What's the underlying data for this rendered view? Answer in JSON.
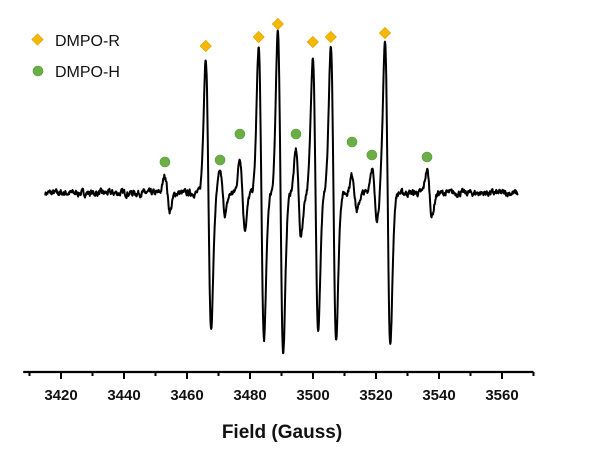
{
  "chart_data": {
    "type": "line",
    "title": "",
    "xlabel": "Field (Gauss)",
    "ylabel": "",
    "xlim": [
      3408,
      3570
    ],
    "xticks": [
      3420,
      3440,
      3460,
      3480,
      3500,
      3520,
      3540,
      3560
    ],
    "xtick_labels": [
      "3420",
      "3440",
      "3460",
      "3480",
      "3500",
      "3520",
      "3540",
      "3560"
    ],
    "spectrum_range": [
      3415,
      3565
    ],
    "y_axis_shown": false,
    "grid": false,
    "legend": {
      "placement": "top-left",
      "entries": [
        {
          "label": "DMPO-R",
          "marker": "diamond",
          "color": "#F5B800"
        },
        {
          "label": "DMPO-H",
          "marker": "circle",
          "color": "#6AAE45"
        }
      ]
    },
    "line_color": "#000000",
    "series": [
      {
        "name": "DMPO-R",
        "lines": [
          {
            "center": 3466.8,
            "amplitude": 1.36,
            "width": 0.85
          },
          {
            "center": 3483.6,
            "amplitude": 1.46,
            "width": 0.85
          },
          {
            "center": 3489.7,
            "amplitude": 1.6,
            "width": 0.85
          },
          {
            "center": 3500.8,
            "amplitude": 1.38,
            "width": 0.85
          },
          {
            "center": 3506.5,
            "amplitude": 1.45,
            "width": 0.85
          },
          {
            "center": 3523.7,
            "amplitude": 1.51,
            "width": 0.85
          }
        ],
        "marker_heights": [
          1.47,
          1.56,
          1.69,
          1.51,
          1.56,
          1.6
        ]
      },
      {
        "name": "DMPO-H",
        "lines": [
          {
            "center": 3453.8,
            "amplitude": 0.18,
            "width": 0.8
          },
          {
            "center": 3471.3,
            "amplitude": 0.21,
            "width": 0.8
          },
          {
            "center": 3477.6,
            "amplitude": 0.35,
            "width": 0.8
          },
          {
            "center": 3495.4,
            "amplitude": 0.43,
            "width": 0.8
          },
          {
            "center": 3513.2,
            "amplitude": 0.18,
            "width": 0.8
          },
          {
            "center": 3519.5,
            "amplitude": 0.25,
            "width": 0.8
          },
          {
            "center": 3537.0,
            "amplitude": 0.23,
            "width": 0.8
          }
        ],
        "marker_heights": [
          0.31,
          0.33,
          0.59,
          0.59,
          0.51,
          0.38,
          0.36
        ]
      }
    ]
  }
}
